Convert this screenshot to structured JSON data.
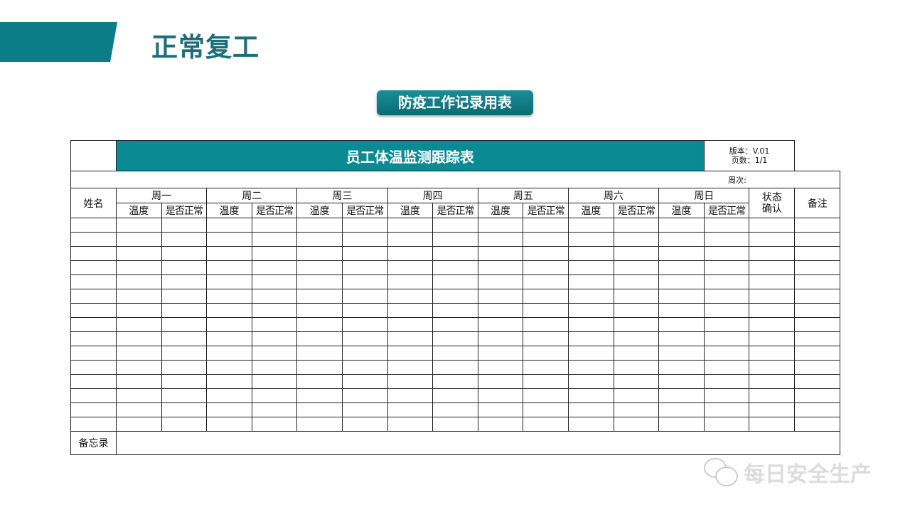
{
  "slide": {
    "title": "正常复工",
    "badge": "防疫工作记录用表",
    "accent": "#0a8a93"
  },
  "table": {
    "title": "员工体温监测跟踪表",
    "version": "版本：V.01",
    "pages": "页数：1/1",
    "week_label": "周次:",
    "name_header": "姓名",
    "days": [
      "周一",
      "周二",
      "周三",
      "周四",
      "周五",
      "周六",
      "周日"
    ],
    "sub_headers": {
      "temp": "温度",
      "normal": "是否正常"
    },
    "status_header": "状态确认",
    "notes_header": "备注",
    "memo_label": "备忘录",
    "rows": [
      [],
      [],
      [],
      [],
      [],
      [],
      [],
      [],
      [],
      [],
      [],
      [],
      [],
      [],
      []
    ]
  },
  "watermark": {
    "text": "每日安全生产",
    "icon": "wechat-icon"
  }
}
